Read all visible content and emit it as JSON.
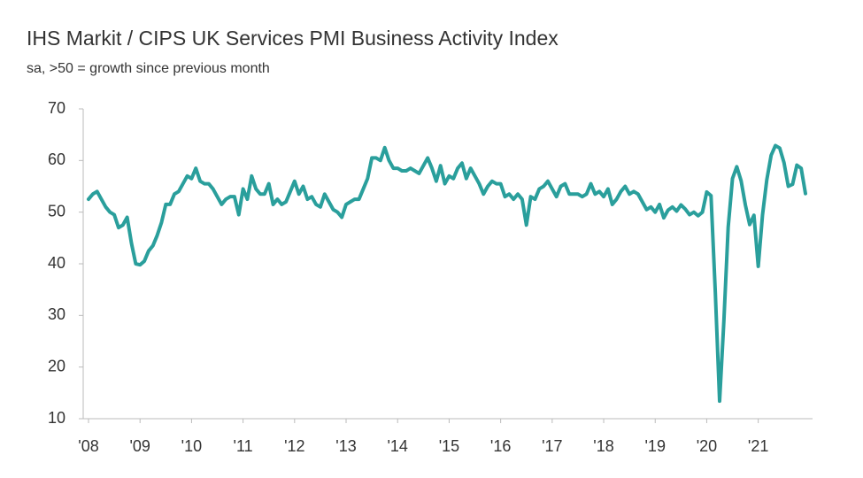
{
  "chart_data": {
    "type": "line",
    "title": "IHS Markit / CIPS UK Services PMI Business Activity Index",
    "subtitle": "sa, >50 = growth since previous month",
    "categories": [
      "'08",
      null,
      null,
      null,
      null,
      null,
      null,
      null,
      null,
      null,
      null,
      null,
      "'09",
      null,
      null,
      null,
      null,
      null,
      null,
      null,
      null,
      null,
      null,
      null,
      "'10",
      null,
      null,
      null,
      null,
      null,
      null,
      null,
      null,
      null,
      null,
      null,
      "'11",
      null,
      null,
      null,
      null,
      null,
      null,
      null,
      null,
      null,
      null,
      null,
      "'12",
      null,
      null,
      null,
      null,
      null,
      null,
      null,
      null,
      null,
      null,
      null,
      "'13",
      null,
      null,
      null,
      null,
      null,
      null,
      null,
      null,
      null,
      null,
      null,
      "'14",
      null,
      null,
      null,
      null,
      null,
      null,
      null,
      null,
      null,
      null,
      null,
      "'15",
      null,
      null,
      null,
      null,
      null,
      null,
      null,
      null,
      null,
      null,
      null,
      "'16",
      null,
      null,
      null,
      null,
      null,
      null,
      null,
      null,
      null,
      null,
      null,
      "'17",
      null,
      null,
      null,
      null,
      null,
      null,
      null,
      null,
      null,
      null,
      null,
      "'18",
      null,
      null,
      null,
      null,
      null,
      null,
      null,
      null,
      null,
      null,
      null,
      "'19",
      null,
      null,
      null,
      null,
      null,
      null,
      null,
      null,
      null,
      null,
      null,
      "'20",
      null,
      null,
      null,
      null,
      null,
      null,
      null,
      null,
      null,
      null,
      null,
      "'21",
      null,
      null,
      null,
      null,
      null,
      null,
      null,
      null,
      null,
      null,
      null
    ],
    "values": [
      52.5,
      53.5,
      54,
      52.5,
      51,
      50,
      49.5,
      47,
      47.5,
      49,
      44,
      40,
      39.8,
      40.5,
      42.5,
      43.5,
      45.5,
      48,
      51.5,
      51.5,
      53.5,
      54,
      55.5,
      57,
      56.5,
      58.5,
      56,
      55.5,
      55.5,
      54.5,
      53,
      51.5,
      52.5,
      53,
      53,
      49.5,
      54.5,
      52.5,
      57,
      54.5,
      53.5,
      53.5,
      55.5,
      51.5,
      52.5,
      51.5,
      52,
      54,
      56,
      53.5,
      55,
      52.5,
      53,
      51.5,
      51,
      53.5,
      52,
      50.5,
      50,
      49,
      51.5,
      52,
      52.5,
      52.5,
      54.5,
      56.5,
      60.5,
      60.5,
      60,
      62.5,
      60,
      58.5,
      58.5,
      58,
      58,
      58.5,
      58,
      57.5,
      59,
      60.5,
      58.5,
      56,
      59,
      55.5,
      57,
      56.5,
      58.5,
      59.5,
      56.5,
      58.5,
      57,
      55.5,
      53.5,
      55,
      56,
      55.5,
      55.5,
      53,
      53.5,
      52.5,
      53.5,
      52.5,
      47.5,
      53,
      52.5,
      54.5,
      55,
      56,
      54.5,
      53,
      55,
      55.5,
      53.5,
      53.5,
      53.5,
      53,
      53.5,
      55.5,
      53.5,
      54,
      53,
      54.5,
      51.5,
      52.5,
      54,
      55,
      53.5,
      54,
      53.5,
      52,
      50.5,
      51,
      50,
      51.5,
      48.9,
      50.4,
      51,
      50.2,
      51.4,
      50.6,
      49.5,
      50,
      49.3,
      50,
      53.9,
      53.2,
      34.5,
      13.4,
      29,
      47.1,
      56.5,
      58.8,
      56.1,
      51.4,
      47.6,
      49.4,
      39.5,
      49.5,
      56.3,
      61,
      62.9,
      62.4,
      59.6,
      55,
      55.4,
      59.1,
      58.5,
      53.6
    ],
    "color": "#2a9f9c",
    "ylim": [
      10,
      70
    ],
    "yticks": [
      10,
      20,
      30,
      40,
      50,
      60,
      70
    ],
    "grid": false
  }
}
